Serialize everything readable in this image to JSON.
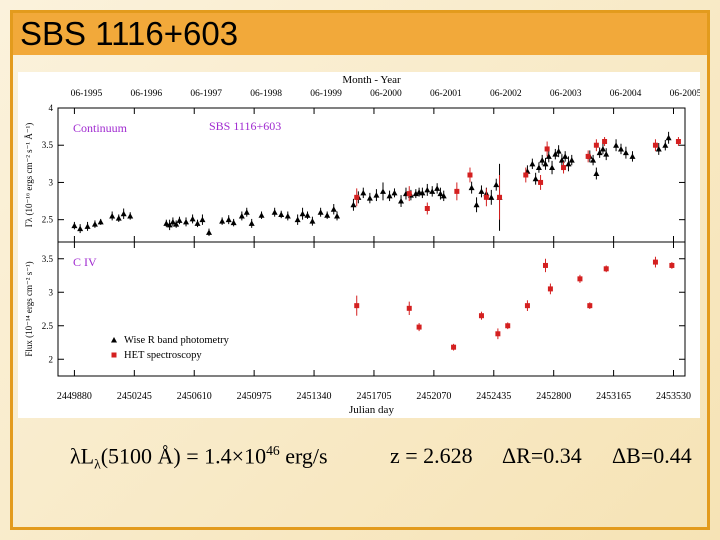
{
  "slide": {
    "title": "SBS 1116+603",
    "footer": {
      "lum_lambda": "λL",
      "lum_sub": "λ",
      "lum_mid": "(5100 Å) = 1.4×10",
      "lum_exp": "46",
      "lum_unit": " erg/s",
      "redshift": "z = 2.628",
      "delta_r": "ΔR=0.34",
      "delta_b": "ΔB=0.44"
    }
  },
  "chart_data": {
    "type": "scatter",
    "object_label": "SBS 1116+603",
    "top_axis_title": "Month - Year",
    "top_axis_ticks": [
      "06-1995",
      "06-1996",
      "06-1997",
      "06-1998",
      "06-1999",
      "06-2000",
      "06-2001",
      "06-2002",
      "06-2003",
      "06-2004",
      "06-2005"
    ],
    "xlabel": "Julian day",
    "x_ticks": [
      "2449880",
      "2450245",
      "2450610",
      "2450975",
      "2451340",
      "2451705",
      "2452070",
      "2452435",
      "2452800",
      "2453165",
      "2453530"
    ],
    "x_tick_values": [
      2449880,
      2450245,
      2450610,
      2450975,
      2451340,
      2451705,
      2452070,
      2452435,
      2452800,
      2453165,
      2453530
    ],
    "xlim": [
      2449780,
      2453600
    ],
    "legend": {
      "placement": "lower-left of bottom panel",
      "entries": [
        {
          "marker": "triangle",
          "label": "Wise R band photometry"
        },
        {
          "marker": "square",
          "label": "HET spectroscopy"
        }
      ]
    },
    "colors": {
      "photometry": "#000000",
      "spectroscopy": "#d42020",
      "label": "#a02ad0",
      "axis": "#000000"
    },
    "panels": [
      {
        "name": "Continuum",
        "ylabel": "Γλ (10⁻¹⁶ ergs cm⁻² s⁻¹ Å⁻¹)",
        "ylim": [
          2.2,
          4.0
        ],
        "y_ticks": [
          "2.5",
          "3",
          "3.5",
          "4"
        ],
        "y_tick_values": [
          2.5,
          3,
          3.5,
          4
        ],
        "series": [
          {
            "name": "Wise R band photometry",
            "marker": "triangle",
            "points": [
              [
                2449880,
                2.42,
                0.05
              ],
              [
                2449915,
                2.38,
                0.06
              ],
              [
                2449960,
                2.41,
                0.06
              ],
              [
                2450005,
                2.44,
                0.05
              ],
              [
                2450040,
                2.47,
                0.04
              ],
              [
                2450110,
                2.55,
                0.06
              ],
              [
                2450150,
                2.52,
                0.05
              ],
              [
                2450180,
                2.58,
                0.07
              ],
              [
                2450220,
                2.55,
                0.05
              ],
              [
                2450440,
                2.45,
                0.05
              ],
              [
                2450460,
                2.43,
                0.07
              ],
              [
                2450480,
                2.47,
                0.06
              ],
              [
                2450500,
                2.44,
                0.05
              ],
              [
                2450520,
                2.49,
                0.05
              ],
              [
                2450560,
                2.47,
                0.06
              ],
              [
                2450600,
                2.51,
                0.06
              ],
              [
                2450630,
                2.45,
                0.05
              ],
              [
                2450660,
                2.5,
                0.07
              ],
              [
                2450700,
                2.33,
                0.05
              ],
              [
                2450780,
                2.48,
                0.05
              ],
              [
                2450820,
                2.5,
                0.06
              ],
              [
                2450850,
                2.46,
                0.05
              ],
              [
                2450900,
                2.55,
                0.06
              ],
              [
                2450930,
                2.6,
                0.06
              ],
              [
                2450960,
                2.45,
                0.06
              ],
              [
                2451020,
                2.56,
                0.05
              ],
              [
                2451100,
                2.6,
                0.06
              ],
              [
                2451140,
                2.57,
                0.05
              ],
              [
                2451180,
                2.55,
                0.06
              ],
              [
                2451240,
                2.5,
                0.07
              ],
              [
                2451270,
                2.58,
                0.08
              ],
              [
                2451300,
                2.56,
                0.05
              ],
              [
                2451330,
                2.48,
                0.06
              ],
              [
                2451380,
                2.6,
                0.06
              ],
              [
                2451420,
                2.56,
                0.05
              ],
              [
                2451460,
                2.64,
                0.07
              ],
              [
                2451480,
                2.55,
                0.06
              ],
              [
                2451580,
                2.7,
                0.08
              ],
              [
                2451610,
                2.8,
                0.08
              ],
              [
                2451640,
                2.86,
                0.07
              ],
              [
                2451680,
                2.79,
                0.07
              ],
              [
                2451720,
                2.83,
                0.08
              ],
              [
                2451760,
                2.88,
                0.12
              ],
              [
                2451800,
                2.82,
                0.07
              ],
              [
                2451830,
                2.86,
                0.06
              ],
              [
                2451870,
                2.75,
                0.08
              ],
              [
                2451900,
                2.85,
                0.08
              ],
              [
                2451930,
                2.83,
                0.07
              ],
              [
                2451960,
                2.85,
                0.06
              ],
              [
                2451980,
                2.87,
                0.06
              ],
              [
                2452000,
                2.86,
                0.07
              ],
              [
                2452030,
                2.9,
                0.08
              ],
              [
                2452060,
                2.88,
                0.07
              ],
              [
                2452090,
                2.92,
                0.07
              ],
              [
                2452110,
                2.85,
                0.08
              ],
              [
                2452130,
                2.82,
                0.07
              ],
              [
                2452300,
                2.93,
                0.08
              ],
              [
                2452330,
                2.7,
                0.1
              ],
              [
                2452360,
                2.88,
                0.08
              ],
              [
                2452390,
                2.85,
                0.08
              ],
              [
                2452420,
                2.8,
                0.1
              ],
              [
                2452450,
                2.97,
                0.08
              ],
              [
                2452470,
                2.8,
                0.45
              ],
              [
                2452640,
                3.15,
                0.08
              ],
              [
                2452670,
                3.25,
                0.07
              ],
              [
                2452690,
                3.05,
                0.08
              ],
              [
                2452710,
                3.2,
                0.07
              ],
              [
                2452730,
                3.3,
                0.07
              ],
              [
                2452750,
                3.25,
                0.08
              ],
              [
                2452770,
                3.35,
                0.08
              ],
              [
                2452790,
                3.2,
                0.09
              ],
              [
                2452810,
                3.38,
                0.07
              ],
              [
                2452830,
                3.42,
                0.08
              ],
              [
                2452850,
                3.3,
                0.08
              ],
              [
                2452870,
                3.35,
                0.07
              ],
              [
                2452890,
                3.25,
                0.1
              ],
              [
                2452910,
                3.3,
                0.07
              ],
              [
                2453020,
                3.35,
                0.08
              ],
              [
                2453040,
                3.3,
                0.07
              ],
              [
                2453060,
                3.12,
                0.08
              ],
              [
                2453080,
                3.4,
                0.07
              ],
              [
                2453100,
                3.45,
                0.07
              ],
              [
                2453120,
                3.38,
                0.08
              ],
              [
                2453180,
                3.5,
                0.08
              ],
              [
                2453210,
                3.45,
                0.07
              ],
              [
                2453240,
                3.4,
                0.08
              ],
              [
                2453280,
                3.35,
                0.07
              ],
              [
                2453440,
                3.45,
                0.08
              ],
              [
                2453480,
                3.5,
                0.07
              ],
              [
                2453500,
                3.6,
                0.08
              ]
            ]
          },
          {
            "name": "HET spectroscopy",
            "marker": "square",
            "points": [
              [
                2451600,
                2.8,
                0.12
              ],
              [
                2451920,
                2.85,
                0.1
              ],
              [
                2452030,
                2.65,
                0.08
              ],
              [
                2452210,
                2.88,
                0.12
              ],
              [
                2452290,
                3.1,
                0.1
              ],
              [
                2452390,
                2.8,
                0.12
              ],
              [
                2452470,
                2.8,
                0.3
              ],
              [
                2452630,
                3.1,
                0.1
              ],
              [
                2452720,
                3.0,
                0.1
              ],
              [
                2452760,
                3.45,
                0.1
              ],
              [
                2452860,
                3.2,
                0.08
              ],
              [
                2453010,
                3.35,
                0.08
              ],
              [
                2453060,
                3.5,
                0.08
              ],
              [
                2453110,
                3.55,
                0.06
              ],
              [
                2453420,
                3.5,
                0.08
              ],
              [
                2453560,
                3.55,
                0.06
              ]
            ]
          }
        ]
      },
      {
        "name": "C IV",
        "ylabel": "Flux (10⁻¹⁴ ergs cm⁻² s⁻¹)",
        "ylim": [
          1.75,
          3.75
        ],
        "y_ticks": [
          "2",
          "2.5",
          "3",
          "3.5"
        ],
        "y_tick_values": [
          2,
          2.5,
          3,
          3.5
        ],
        "series": [
          {
            "name": "HET spectroscopy",
            "marker": "square",
            "points": [
              [
                2451600,
                2.8,
                0.15
              ],
              [
                2451920,
                2.76,
                0.1
              ],
              [
                2451980,
                2.48,
                0.06
              ],
              [
                2452190,
                2.18,
                0.05
              ],
              [
                2452360,
                2.65,
                0.06
              ],
              [
                2452460,
                2.38,
                0.08
              ],
              [
                2452520,
                2.5,
                0.05
              ],
              [
                2452640,
                2.8,
                0.08
              ],
              [
                2452750,
                3.4,
                0.1
              ],
              [
                2452780,
                3.05,
                0.08
              ],
              [
                2452960,
                3.2,
                0.06
              ],
              [
                2453020,
                2.8,
                0.05
              ],
              [
                2453120,
                3.35,
                0.05
              ],
              [
                2453420,
                3.45,
                0.08
              ],
              [
                2453520,
                3.4,
                0.05
              ]
            ]
          }
        ]
      }
    ]
  }
}
